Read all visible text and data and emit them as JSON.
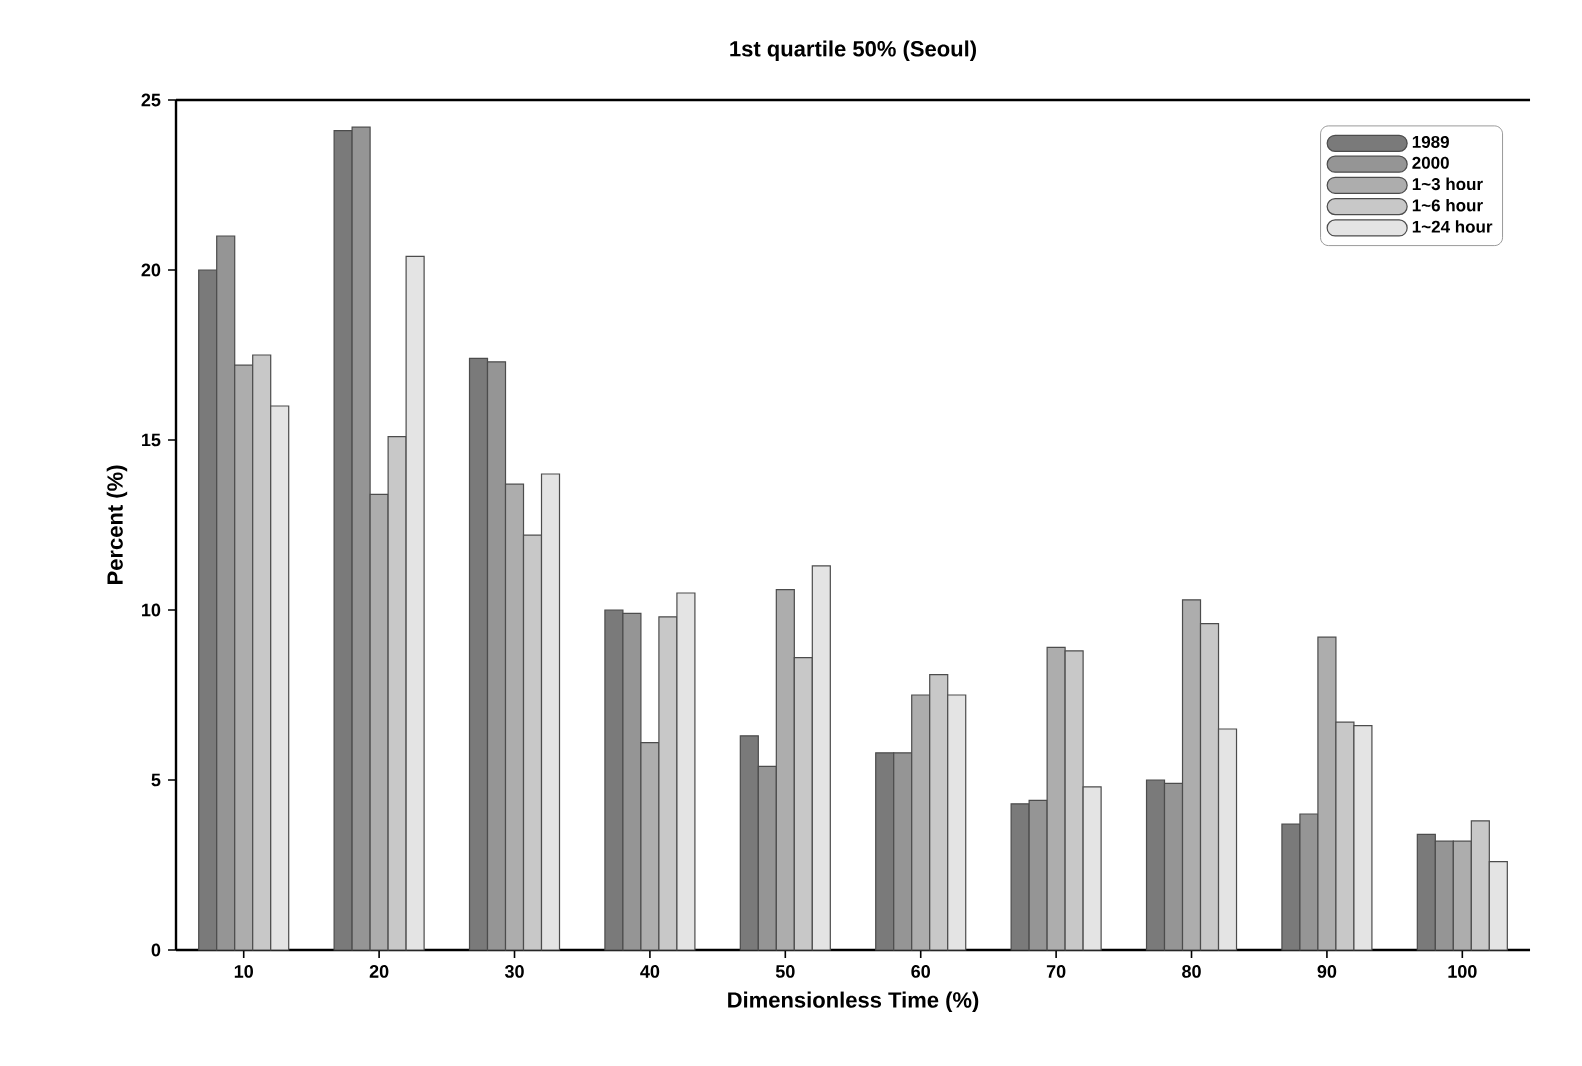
{
  "chart_data": {
    "type": "bar",
    "title": "1st quartile 50% (Seoul)",
    "xlabel": "Dimensionless Time (%)",
    "ylabel": "Percent (%)",
    "categories": [
      "10",
      "20",
      "30",
      "40",
      "50",
      "60",
      "70",
      "80",
      "90",
      "100"
    ],
    "series": [
      {
        "name": "1989",
        "color": "#7a7a7a",
        "values": [
          20,
          24.1,
          17.4,
          10,
          6.3,
          5.8,
          4.3,
          5,
          3.7,
          3.4
        ]
      },
      {
        "name": "2000",
        "color": "#959595",
        "values": [
          21,
          24.2,
          17.3,
          9.9,
          5.4,
          5.8,
          4.4,
          4.9,
          4.0,
          3.2
        ]
      },
      {
        "name": "1~3 hour",
        "color": "#adadad",
        "values": [
          17.2,
          13.4,
          13.7,
          6.1,
          10.6,
          7.5,
          8.9,
          10.3,
          9.2,
          3.2
        ]
      },
      {
        "name": "1~6 hour",
        "color": "#c8c8c8",
        "values": [
          17.5,
          15.1,
          12.2,
          9.8,
          8.6,
          8.1,
          8.8,
          9.6,
          6.7,
          3.8
        ]
      },
      {
        "name": "1~24 hour",
        "color": "#e4e4e4",
        "values": [
          16,
          20.4,
          14,
          10.5,
          11.3,
          7.5,
          4.8,
          6.5,
          6.6,
          2.6
        ]
      }
    ],
    "ylim": [
      0,
      25
    ],
    "yticks": [
      0,
      5,
      10,
      15,
      20,
      25
    ],
    "grid": false,
    "legend": "top right"
  }
}
